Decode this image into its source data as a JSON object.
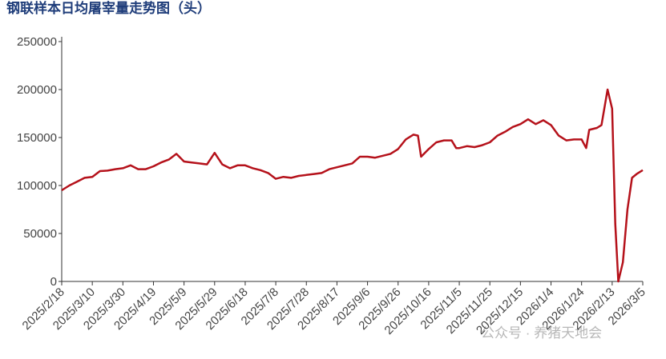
{
  "chart_data": {
    "type": "line",
    "title": "钢联样本日均屠宰量走势图（头）",
    "watermark": "公众号 · 养猪天地会",
    "x": [
      "2025/2/18",
      "2025/2/23",
      "2025/2/28",
      "2025/3/5",
      "2025/3/10",
      "2025/3/15",
      "2025/3/20",
      "2025/3/25",
      "2025/3/30",
      "2025/4/4",
      "2025/4/9",
      "2025/4/14",
      "2025/4/19",
      "2025/4/24",
      "2025/4/29",
      "2025/5/4",
      "2025/5/9",
      "2025/5/14",
      "2025/5/19",
      "2025/5/24",
      "2025/5/29",
      "2025/6/3",
      "2025/6/8",
      "2025/6/13",
      "2025/6/18",
      "2025/6/23",
      "2025/6/28",
      "2025/7/3",
      "2025/7/8",
      "2025/7/13",
      "2025/7/18",
      "2025/7/23",
      "2025/7/28",
      "2025/8/2",
      "2025/8/7",
      "2025/8/12",
      "2025/8/17",
      "2025/8/22",
      "2025/8/27",
      "2025/9/1",
      "2025/9/6",
      "2025/9/11",
      "2025/9/16",
      "2025/9/21",
      "2025/9/26",
      "2025/10/1",
      "2025/10/6",
      "2025/10/9",
      "2025/10/11",
      "2025/10/16",
      "2025/10/21",
      "2025/10/26",
      "2025/10/31",
      "2025/11/3",
      "2025/11/5",
      "2025/11/10",
      "2025/11/15",
      "2025/11/20",
      "2025/11/25",
      "2025/11/30",
      "2025/12/5",
      "2025/12/10",
      "2025/12/15",
      "2025/12/20",
      "2025/12/25",
      "2025/12/30",
      "2026/1/4",
      "2026/1/9",
      "2026/1/14",
      "2026/1/19",
      "2026/1/24",
      "2026/1/27",
      "2026/1/29",
      "2026/2/3",
      "2026/2/6",
      "2026/2/10",
      "2026/2/13",
      "2026/2/15",
      "2026/2/17",
      "2026/2/20",
      "2026/2/23",
      "2026/2/26",
      "2026/3/1",
      "2026/3/5"
    ],
    "series": [
      {
        "color": "#b5121b",
        "values": [
          95000,
          100000,
          104000,
          108000,
          109000,
          115000,
          115500,
          117000,
          118000,
          121000,
          117000,
          117000,
          120000,
          124000,
          127000,
          133000,
          125000,
          124000,
          123000,
          122000,
          134000,
          122000,
          118000,
          121000,
          121000,
          118000,
          116000,
          113000,
          107000,
          109000,
          108000,
          110000,
          111000,
          112000,
          113000,
          117000,
          119000,
          121000,
          123000,
          130000,
          130000,
          129000,
          131000,
          133000,
          138000,
          148000,
          153000,
          152000,
          130000,
          138000,
          145000,
          147000,
          147000,
          139000,
          139000,
          141000,
          140000,
          142000,
          145000,
          152000,
          156000,
          161000,
          164000,
          169000,
          164000,
          168000,
          163000,
          152000,
          147000,
          148000,
          148000,
          139000,
          158000,
          160000,
          163000,
          200000,
          180000,
          60000,
          0,
          20000,
          75000,
          108000,
          112000,
          116000
        ]
      }
    ],
    "xticks": [
      "2025/2/18",
      "2025/3/10",
      "2025/3/30",
      "2025/4/19",
      "2025/5/9",
      "2025/5/29",
      "2025/6/18",
      "2025/7/8",
      "2025/7/28",
      "2025/8/17",
      "2025/9/6",
      "2025/9/26",
      "2025/10/16",
      "2025/11/5",
      "2025/11/25",
      "2025/12/15",
      "2026/1/4",
      "2026/1/24",
      "2026/2/13",
      "2026/3/5"
    ],
    "xlim": [
      "2025/2/18",
      "2026/3/5"
    ],
    "ylim": [
      0,
      250000
    ],
    "yticks": [
      0,
      50000,
      100000,
      150000,
      200000,
      250000
    ]
  }
}
